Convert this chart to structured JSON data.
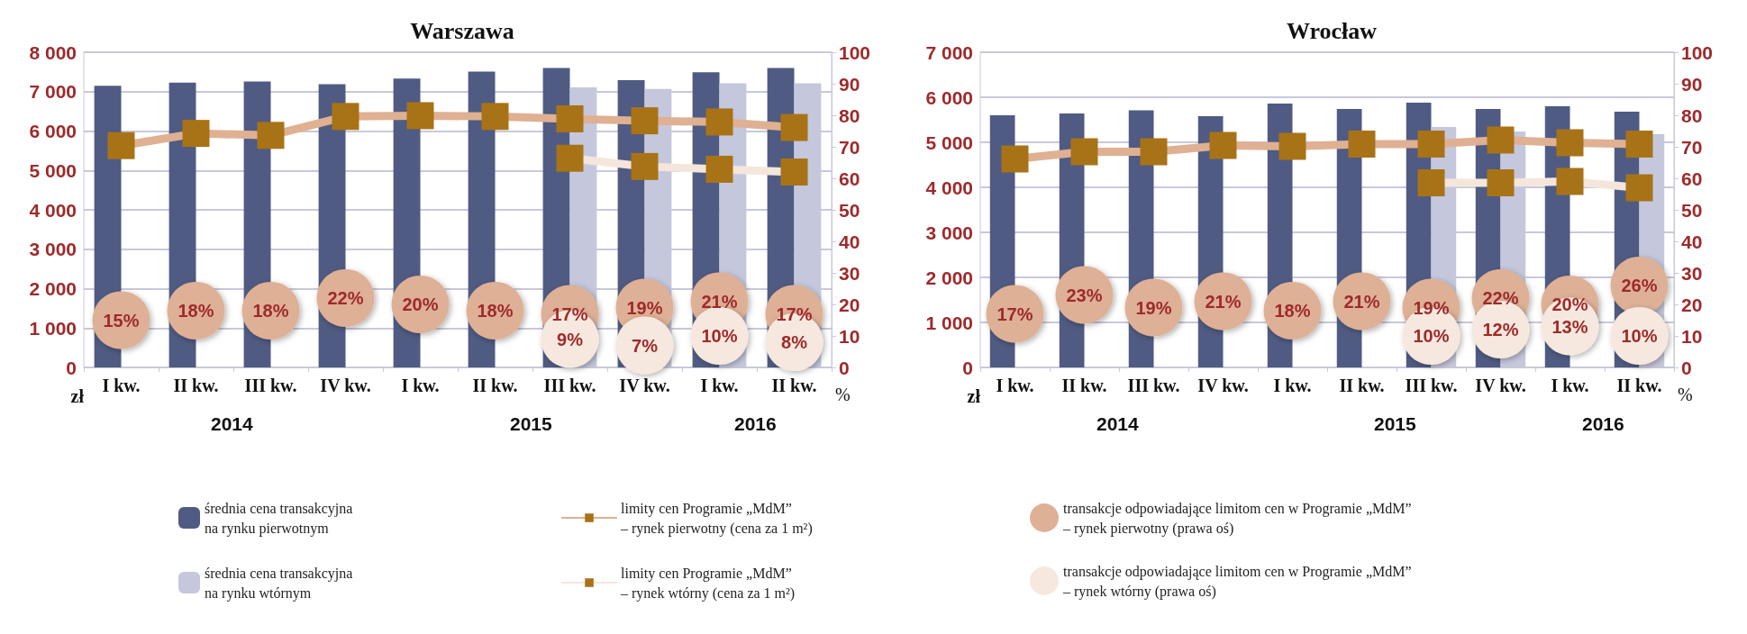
{
  "chart_data": [
    {
      "type": "bar",
      "title": "Warszawa",
      "categories": [
        "I kw.",
        "II kw.",
        "III kw.",
        "IV kw.",
        "I kw.",
        "II kw.",
        "III kw.",
        "IV kw.",
        "I kw.",
        "II kw."
      ],
      "series": [
        {
          "name": "średnia cena transakcyjna\nna rynku pierwotnym",
          "color": "#4f5b82",
          "values": [
            7150,
            7230,
            7260,
            7190,
            7330,
            7510,
            7600,
            7290,
            7490,
            7600
          ]
        },
        {
          "name": "średnia cena transakcyjna\nna rynku wtórnym",
          "color": "#c5c8dc",
          "values": [
            null,
            null,
            null,
            null,
            null,
            null,
            7110,
            7070,
            7210,
            7210
          ]
        },
        {
          "name": "limity cen Programie „MdM”\n– rynek pierwotny (cena za 1 m²)",
          "type": "line",
          "color": "#dfb092",
          "values": [
            5630,
            5940,
            5890,
            6370,
            6390,
            6370,
            6310,
            6260,
            6230,
            6090
          ]
        },
        {
          "name": "limity cen Programie „MdM”\n– rynek wtórny (cena za 1 m²)",
          "type": "line",
          "color": "#f5e6dc",
          "values": [
            null,
            null,
            null,
            null,
            null,
            null,
            5310,
            5100,
            5030,
            4960
          ]
        },
        {
          "name": "transakcje odpowiadające limitom cen w Programie „MdM”\n– rynek pierwotny (prawa oś)",
          "type": "scatter",
          "axis": "y2",
          "marker": "circle",
          "color": "#deb096",
          "values": [
            15,
            18,
            18,
            22,
            20,
            18,
            17,
            19,
            21,
            17
          ],
          "value_labels": [
            "15%",
            "18%",
            "18%",
            "22%",
            "20%",
            "18%",
            "17%",
            "19%",
            "21%",
            "17%"
          ]
        },
        {
          "name": "transakcje odpowiadające limitom cen w Programie „MdM”\n– rynek wtórny (prawa oś)",
          "type": "scatter",
          "axis": "y2",
          "marker": "circle",
          "color": "#f6e8de",
          "values": [
            null,
            null,
            null,
            null,
            null,
            null,
            9,
            7,
            10,
            8
          ],
          "value_labels": [
            null,
            null,
            null,
            null,
            null,
            null,
            "9%",
            "7%",
            "10%",
            "8%"
          ]
        }
      ],
      "ylabel": "zł",
      "y2label": "%",
      "ylim": [
        0,
        8000
      ],
      "yticks": [
        {
          "value": 0,
          "label": "0"
        },
        {
          "value": 1000,
          "label": "1 000"
        },
        {
          "value": 2000,
          "label": "2 000"
        },
        {
          "value": 3000,
          "label": "3 000"
        },
        {
          "value": 4000,
          "label": "4 000"
        },
        {
          "value": 5000,
          "label": "5 000"
        },
        {
          "value": 6000,
          "label": "6 000"
        },
        {
          "value": 7000,
          "label": "7 000"
        },
        {
          "value": 8000,
          "label": "8 000"
        }
      ],
      "y2lim": [
        0,
        100
      ],
      "y2ticks": [
        0,
        10,
        20,
        30,
        40,
        50,
        60,
        70,
        80,
        90,
        100
      ],
      "grid": "y",
      "legend": "bottom",
      "marker": "square",
      "annotations": [
        "2014",
        "2015",
        "2016"
      ]
    },
    {
      "type": "bar",
      "title": "Wrocław",
      "categories": [
        "I kw.",
        "II kw.",
        "III kw.",
        "IV kw.",
        "I kw.",
        "II kw.",
        "III kw.",
        "IV kw.",
        "I kw.",
        "II kw."
      ],
      "series": [
        {
          "color": "#4f5b82",
          "values": [
            5600,
            5640,
            5710,
            5580,
            5860,
            5740,
            5880,
            5740,
            5800,
            5680
          ]
        },
        {
          "color": "#c5c8dc",
          "values": [
            null,
            null,
            null,
            null,
            null,
            null,
            5340,
            5240,
            null,
            5180
          ]
        },
        {
          "type": "line",
          "color": "#dfb092",
          "values": [
            4630,
            4790,
            4790,
            4930,
            4910,
            4960,
            4960,
            5050,
            4990,
            4960
          ]
        },
        {
          "type": "line",
          "color": "#f5e6dc",
          "values": [
            null,
            null,
            null,
            null,
            null,
            null,
            4100,
            4100,
            4130,
            3990
          ]
        },
        {
          "type": "scatter",
          "axis": "y2",
          "marker": "circle",
          "color": "#deb096",
          "values": [
            17,
            23,
            19,
            21,
            18,
            21,
            19,
            22,
            20,
            26
          ],
          "value_labels": [
            "17%",
            "23%",
            "19%",
            "21%",
            "18%",
            "21%",
            "19%",
            "22%",
            "20%",
            "26%"
          ]
        },
        {
          "type": "scatter",
          "axis": "y2",
          "marker": "circle",
          "color": "#f6e8de",
          "values": [
            null,
            null,
            null,
            null,
            null,
            null,
            10,
            12,
            13,
            10
          ],
          "value_labels": [
            null,
            null,
            null,
            null,
            null,
            null,
            "10%",
            "12%",
            "13%",
            "10%"
          ]
        }
      ],
      "ylabel": "zł",
      "y2label": "%",
      "ylim": [
        0,
        7000
      ],
      "yticks": [
        {
          "value": 0,
          "label": "0"
        },
        {
          "value": 1000,
          "label": "1 000"
        },
        {
          "value": 2000,
          "label": "2 000"
        },
        {
          "value": 3000,
          "label": "3 000"
        },
        {
          "value": 4000,
          "label": "4 000"
        },
        {
          "value": 5000,
          "label": "5 000"
        },
        {
          "value": 6000,
          "label": "6 000"
        },
        {
          "value": 7000,
          "label": "7 000"
        }
      ],
      "y2lim": [
        0,
        100
      ],
      "y2ticks": [
        0,
        10,
        20,
        30,
        40,
        50,
        60,
        70,
        80,
        90,
        100
      ],
      "grid": "y",
      "marker": "square",
      "annotations": [
        "2014",
        "2015",
        "2016"
      ]
    }
  ]
}
